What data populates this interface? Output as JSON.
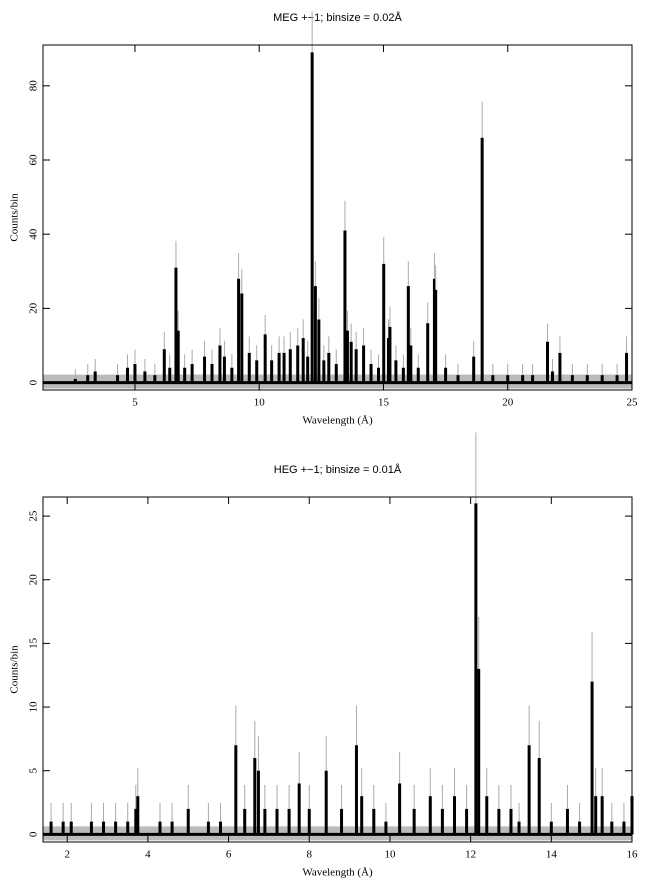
{
  "chart_data": [
    {
      "type": "bar",
      "title": "MEG +−1; binsize = 0.02Å",
      "x_label": "Wavelength (Å)",
      "y_label": "Counts/bin",
      "x": [
        2.6,
        3.1,
        3.4,
        4.3,
        4.7,
        5.0,
        5.4,
        5.8,
        6.18,
        6.4,
        6.65,
        6.74,
        7.0,
        7.3,
        7.8,
        8.1,
        8.42,
        8.6,
        8.9,
        9.17,
        9.3,
        9.6,
        9.9,
        10.24,
        10.5,
        10.8,
        11.0,
        11.25,
        11.55,
        11.77,
        11.95,
        12.13,
        12.26,
        12.4,
        12.6,
        12.8,
        13.1,
        13.45,
        13.55,
        13.7,
        13.9,
        14.2,
        14.5,
        14.8,
        15.01,
        15.2,
        15.26,
        15.5,
        15.8,
        16.0,
        16.1,
        16.4,
        16.78,
        17.05,
        17.1,
        17.5,
        18.0,
        18.63,
        18.97,
        19.4,
        20.0,
        20.6,
        21.0,
        21.6,
        21.8,
        22.1,
        22.6,
        23.2,
        23.8,
        24.4,
        24.78
      ],
      "values": [
        1,
        2,
        3,
        2,
        4,
        5,
        3,
        2,
        9,
        4,
        31,
        14,
        4,
        5,
        7,
        5,
        10,
        7,
        4,
        28,
        24,
        8,
        6,
        13,
        6,
        8,
        8,
        9,
        10,
        12,
        7,
        89,
        26,
        17,
        6,
        8,
        5,
        41,
        14,
        11,
        9,
        10,
        5,
        4,
        32,
        12,
        15,
        6,
        4,
        26,
        10,
        4,
        16,
        28,
        25,
        4,
        2,
        7,
        66,
        2,
        2,
        2,
        2,
        11,
        3,
        8,
        2,
        2,
        2,
        2,
        8
      ],
      "xlim": [
        1.3,
        25
      ],
      "ylim": [
        -2,
        91
      ],
      "xticks": [
        5,
        10,
        15,
        20,
        25
      ],
      "yticks": [
        0,
        20,
        40,
        60,
        80
      ],
      "color": "#000000"
    },
    {
      "type": "bar",
      "title": "HEG +−1; binsize = 0.01Å",
      "x_label": "Wavelength (Å)",
      "y_label": "Counts/bin",
      "x": [
        1.6,
        1.9,
        2.1,
        2.6,
        2.9,
        3.2,
        3.5,
        3.7,
        3.75,
        4.3,
        4.6,
        5.0,
        5.5,
        5.8,
        6.18,
        6.4,
        6.65,
        6.74,
        6.9,
        7.2,
        7.5,
        7.75,
        8.0,
        8.42,
        8.8,
        9.17,
        9.3,
        9.6,
        9.9,
        10.24,
        10.6,
        11.0,
        11.3,
        11.6,
        11.9,
        12.13,
        12.2,
        12.4,
        12.7,
        13.0,
        13.2,
        13.45,
        13.7,
        14.0,
        14.4,
        14.7,
        15.01,
        15.1,
        15.26,
        15.5,
        15.8,
        16.0
      ],
      "values": [
        1,
        1,
        1,
        1,
        1,
        1,
        1,
        2,
        3,
        1,
        1,
        2,
        1,
        1,
        7,
        2,
        6,
        5,
        2,
        2,
        2,
        4,
        2,
        5,
        2,
        7,
        3,
        2,
        1,
        4,
        2,
        3,
        2,
        3,
        2,
        26,
        13,
        3,
        2,
        2,
        1,
        7,
        6,
        1,
        2,
        1,
        12,
        3,
        3,
        1,
        1,
        3
      ],
      "xlim": [
        1.4,
        16
      ],
      "ylim": [
        -0.6,
        26.5
      ],
      "xticks": [
        2,
        4,
        6,
        8,
        10,
        12,
        14,
        16
      ],
      "yticks": [
        0,
        5,
        10,
        15,
        20,
        25
      ],
      "color": "#000000"
    }
  ]
}
